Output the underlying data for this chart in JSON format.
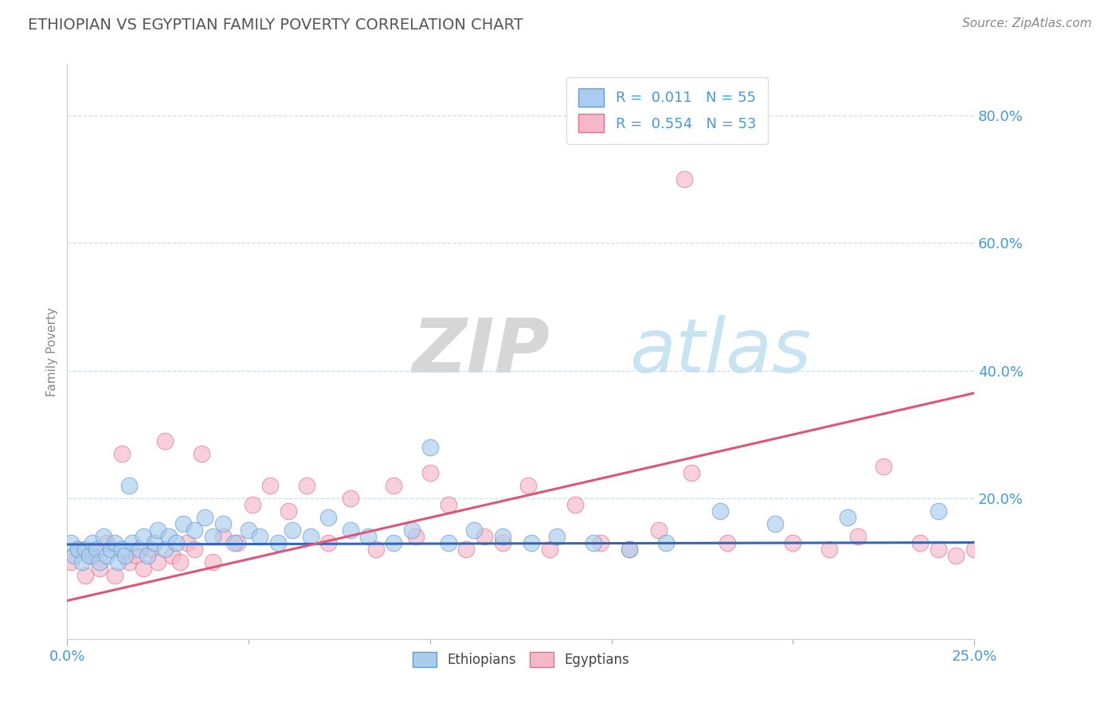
{
  "title": "ETHIOPIAN VS EGYPTIAN FAMILY POVERTY CORRELATION CHART",
  "source": "Source: ZipAtlas.com",
  "xlim": [
    0.0,
    0.25
  ],
  "ylim": [
    -0.02,
    0.88
  ],
  "ytick_vals": [
    0.2,
    0.4,
    0.6,
    0.8
  ],
  "xtick_vals": [
    0.0,
    0.25
  ],
  "ethiopian_color": "#aaccee",
  "egyptian_color": "#f5b8c8",
  "ethiopian_edge_color": "#6699cc",
  "egyptian_edge_color": "#e07090",
  "ethiopian_line_color": "#3366bb",
  "egyptian_line_color": "#dd5577",
  "legend_R_ethiopians": "0.011",
  "legend_N_ethiopians": "55",
  "legend_R_egyptians": "0.554",
  "legend_N_egyptians": "53",
  "title_color": "#555555",
  "axis_label_color": "#4499dd",
  "grid_color": "#c8dff0",
  "watermark_zip_color": "#c8c8c8",
  "watermark_atlas_color": "#aaccee",
  "ethiopian_line_x": [
    0.0,
    0.25
  ],
  "ethiopian_line_y": [
    0.128,
    0.131
  ],
  "egyptian_line_x": [
    0.0,
    0.25
  ],
  "egyptian_line_y": [
    0.04,
    0.365
  ],
  "eth_x": [
    0.001,
    0.002,
    0.003,
    0.004,
    0.005,
    0.006,
    0.007,
    0.008,
    0.009,
    0.01,
    0.011,
    0.012,
    0.013,
    0.014,
    0.015,
    0.016,
    0.017,
    0.018,
    0.02,
    0.021,
    0.022,
    0.024,
    0.025,
    0.027,
    0.028,
    0.03,
    0.032,
    0.035,
    0.038,
    0.04,
    0.043,
    0.046,
    0.05,
    0.053,
    0.058,
    0.062,
    0.067,
    0.072,
    0.078,
    0.083,
    0.09,
    0.095,
    0.1,
    0.105,
    0.112,
    0.12,
    0.128,
    0.135,
    0.145,
    0.155,
    0.165,
    0.18,
    0.195,
    0.215,
    0.24
  ],
  "eth_y": [
    0.13,
    0.11,
    0.12,
    0.1,
    0.12,
    0.11,
    0.13,
    0.12,
    0.1,
    0.14,
    0.11,
    0.12,
    0.13,
    0.1,
    0.12,
    0.11,
    0.22,
    0.13,
    0.12,
    0.14,
    0.11,
    0.13,
    0.15,
    0.12,
    0.14,
    0.13,
    0.16,
    0.15,
    0.17,
    0.14,
    0.16,
    0.13,
    0.15,
    0.14,
    0.13,
    0.15,
    0.14,
    0.17,
    0.15,
    0.14,
    0.13,
    0.15,
    0.28,
    0.13,
    0.15,
    0.14,
    0.13,
    0.14,
    0.13,
    0.12,
    0.13,
    0.18,
    0.16,
    0.17,
    0.18
  ],
  "egy_x": [
    0.001,
    0.003,
    0.005,
    0.007,
    0.009,
    0.011,
    0.013,
    0.015,
    0.017,
    0.019,
    0.021,
    0.023,
    0.025,
    0.027,
    0.029,
    0.031,
    0.033,
    0.035,
    0.037,
    0.04,
    0.043,
    0.047,
    0.051,
    0.056,
    0.061,
    0.066,
    0.072,
    0.078,
    0.085,
    0.09,
    0.096,
    0.1,
    0.105,
    0.11,
    0.115,
    0.12,
    0.127,
    0.133,
    0.14,
    0.147,
    0.155,
    0.163,
    0.172,
    0.182,
    0.17,
    0.2,
    0.21,
    0.218,
    0.225,
    0.235,
    0.24,
    0.245,
    0.25
  ],
  "egy_y": [
    0.1,
    0.12,
    0.08,
    0.11,
    0.09,
    0.13,
    0.08,
    0.27,
    0.1,
    0.11,
    0.09,
    0.12,
    0.1,
    0.29,
    0.11,
    0.1,
    0.13,
    0.12,
    0.27,
    0.1,
    0.14,
    0.13,
    0.19,
    0.22,
    0.18,
    0.22,
    0.13,
    0.2,
    0.12,
    0.22,
    0.14,
    0.24,
    0.19,
    0.12,
    0.14,
    0.13,
    0.22,
    0.12,
    0.19,
    0.13,
    0.12,
    0.15,
    0.24,
    0.13,
    0.7,
    0.13,
    0.12,
    0.14,
    0.25,
    0.13,
    0.12,
    0.11,
    0.12
  ]
}
